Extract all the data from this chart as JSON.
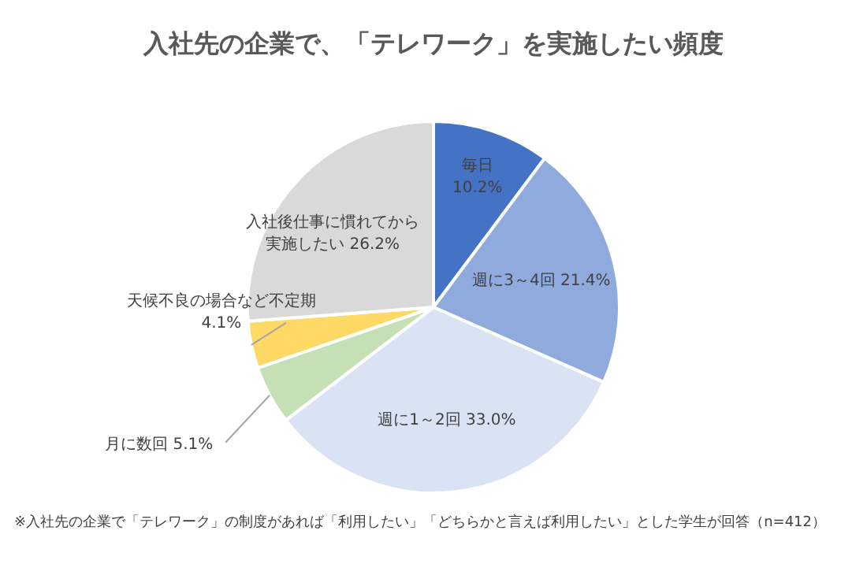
{
  "chart_data": {
    "type": "pie",
    "title": "入社先の企業で、「テレワーク」を実施したい頻度",
    "categories": [
      "毎日",
      "週に3～4回",
      "週に1～2回",
      "月に数回",
      "天候不良の場合など不定期",
      "入社後仕事に慣れてから実施したい"
    ],
    "values": [
      10.2,
      21.4,
      33.0,
      5.1,
      4.1,
      26.2
    ],
    "colors": [
      "#4472c4",
      "#8faadc",
      "#dae3f3",
      "#c5e0b4",
      "#ffd966",
      "#d9d9d9"
    ],
    "value_labels": [
      "10.2%",
      "21.4%",
      "33.0%",
      "5.1%",
      "4.1%",
      "26.2%"
    ],
    "legend": false,
    "annotations": [
      "※入社先の企業で「テレワーク」の制度があれば「利用したい」「どちらかと言えば利用したい」とした学生が回答（n=412）"
    ]
  }
}
